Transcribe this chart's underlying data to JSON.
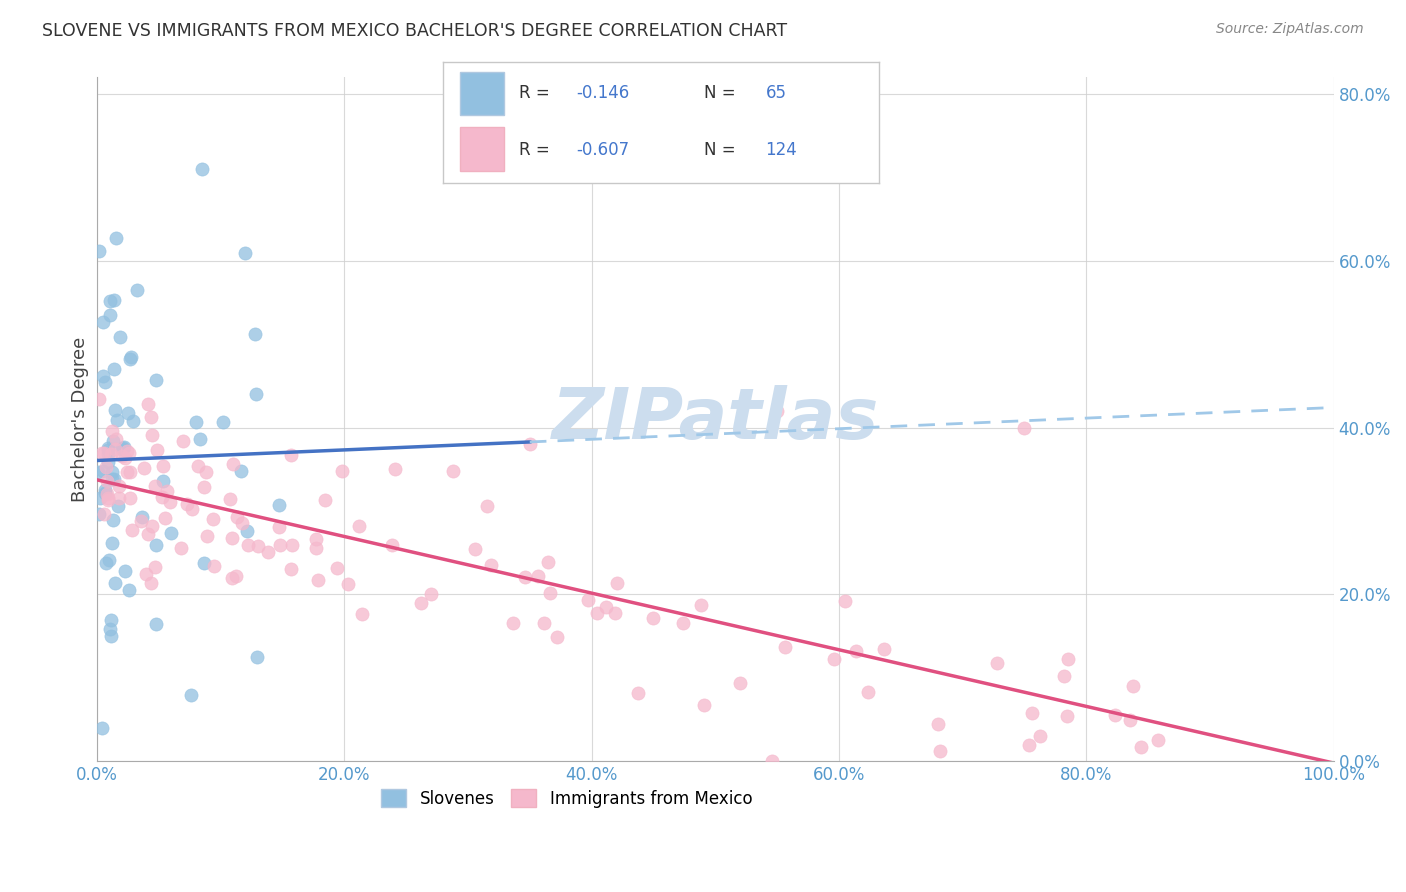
{
  "title": "SLOVENE VS IMMIGRANTS FROM MEXICO BACHELOR'S DEGREE CORRELATION CHART",
  "source": "Source: ZipAtlas.com",
  "ylabel": "Bachelor's Degree",
  "legend_label1": "Slovenes",
  "legend_label2": "Immigrants from Mexico",
  "R1": "-0.146",
  "N1": "65",
  "R2": "-0.607",
  "N2": "124",
  "blue_scatter_color": "#92c0e0",
  "pink_scatter_color": "#f5b8cc",
  "blue_line_color": "#4472c4",
  "pink_line_color": "#e05080",
  "dashed_line_color": "#a0c8e8",
  "background_color": "#ffffff",
  "grid_color": "#d0d0d0",
  "tick_color": "#5599cc",
  "ylabel_color": "#444444",
  "title_color": "#333333",
  "source_color": "#888888",
  "legend_text_color_R": "#333333",
  "legend_text_color_N": "#4477cc",
  "legend_val_color": "#4477cc",
  "watermark_color": "#ccddee",
  "xlim": [
    0,
    100
  ],
  "ylim": [
    0,
    82
  ],
  "xticks": [
    0,
    20,
    40,
    60,
    80,
    100
  ],
  "yticks": [
    0,
    20,
    40,
    60,
    80
  ],
  "slovene_seed": 7,
  "mexico_seed": 42,
  "n_slovene": 65,
  "n_mexico": 124
}
